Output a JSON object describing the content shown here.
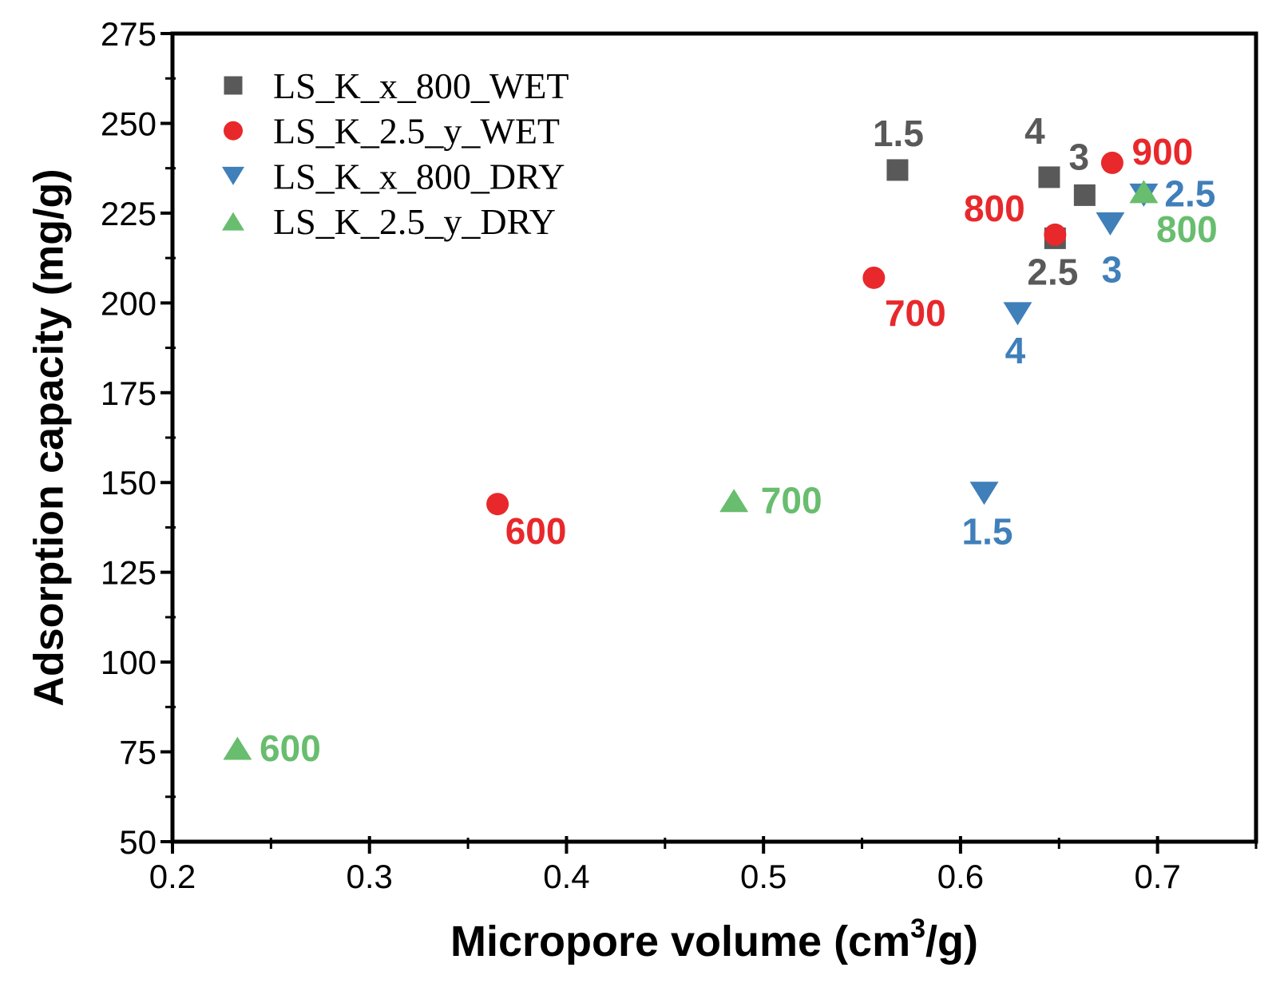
{
  "figure": {
    "background": "#ffffff",
    "axis_color": "#000000"
  },
  "chart_data": {
    "type": "scatter",
    "title": "",
    "xlabel": "Micropore volume (cm³/g)",
    "xlabel_pre": "Micropore volume (cm",
    "xlabel_sup": "3",
    "xlabel_post": "/g)",
    "ylabel": "Adsorption capacity (mg/g)",
    "xlim": [
      0.2,
      0.75
    ],
    "ylim": [
      50,
      275
    ],
    "grid": false,
    "legend_position": "top-left-inside",
    "x_ticks": {
      "values": [
        0.2,
        0.3,
        0.4,
        0.5,
        0.6,
        0.7
      ],
      "labels": [
        "0.2",
        "0.3",
        "0.4",
        "0.5",
        "0.6",
        "0.7"
      ],
      "minor": [
        0.25,
        0.35,
        0.45,
        0.55,
        0.65,
        0.75
      ]
    },
    "y_ticks": {
      "values": [
        50,
        75,
        100,
        125,
        150,
        175,
        200,
        225,
        250,
        275
      ],
      "labels": [
        "50",
        "75",
        "100",
        "125",
        "150",
        "175",
        "200",
        "225",
        "250",
        "275"
      ],
      "minor": [
        62.5,
        87.5,
        112.5,
        137.5,
        162.5,
        187.5,
        212.5,
        237.5,
        262.5
      ]
    },
    "series": [
      {
        "name": "LS_K_x_800_WET",
        "marker": "square",
        "color": "#595959",
        "points": [
          {
            "label": "1.5",
            "x": 0.568,
            "y": 237,
            "label_offset": [
              1,
              -30
            ]
          },
          {
            "label": "2.5",
            "x": 0.648,
            "y": 218,
            "label_offset": [
              -3,
              58
            ]
          },
          {
            "label": "3",
            "x": 0.663,
            "y": 230,
            "label_offset": [
              -7,
              -32
            ]
          },
          {
            "label": "4",
            "x": 0.645,
            "y": 235,
            "label_offset": [
              -18,
              -42
            ]
          }
        ]
      },
      {
        "name": "LS_K_2.5_y_WET",
        "marker": "circle",
        "color": "#e8282b",
        "points": [
          {
            "label": "600",
            "x": 0.365,
            "y": 144,
            "label_offset": [
              48,
              50
            ]
          },
          {
            "label": "700",
            "x": 0.556,
            "y": 207,
            "label_offset": [
              52,
              60
            ]
          },
          {
            "label": "800",
            "x": 0.648,
            "y": 219,
            "label_offset": [
              -76,
              -17
            ]
          },
          {
            "label": "900",
            "x": 0.677,
            "y": 239,
            "label_offset": [
              63,
              2
            ]
          }
        ]
      },
      {
        "name": "LS_K_x_800_DRY",
        "marker": "triangle-down",
        "color": "#3f7fba",
        "points": [
          {
            "label": "1.5",
            "x": 0.612,
            "y": 147,
            "label_offset": [
              4,
              64
            ]
          },
          {
            "label": "2.5",
            "x": 0.693,
            "y": 230,
            "label_offset": [
              58,
              14
            ]
          },
          {
            "label": "3",
            "x": 0.676,
            "y": 222,
            "label_offset": [
              2,
              73
            ]
          },
          {
            "label": "4",
            "x": 0.629,
            "y": 197,
            "label_offset": [
              -3,
              62
            ]
          }
        ]
      },
      {
        "name": "LS_K_2.5_y_DRY",
        "marker": "triangle-up",
        "color": "#68bd6e",
        "points": [
          {
            "label": "600",
            "x": 0.233,
            "y": 76,
            "label_offset": [
              66,
              16
            ]
          },
          {
            "label": "700",
            "x": 0.485,
            "y": 145,
            "label_offset": [
              72,
              16
            ]
          },
          {
            "label": "800",
            "x": 0.693,
            "y": 231,
            "label_offset": [
              54,
              63
            ]
          }
        ]
      }
    ]
  }
}
